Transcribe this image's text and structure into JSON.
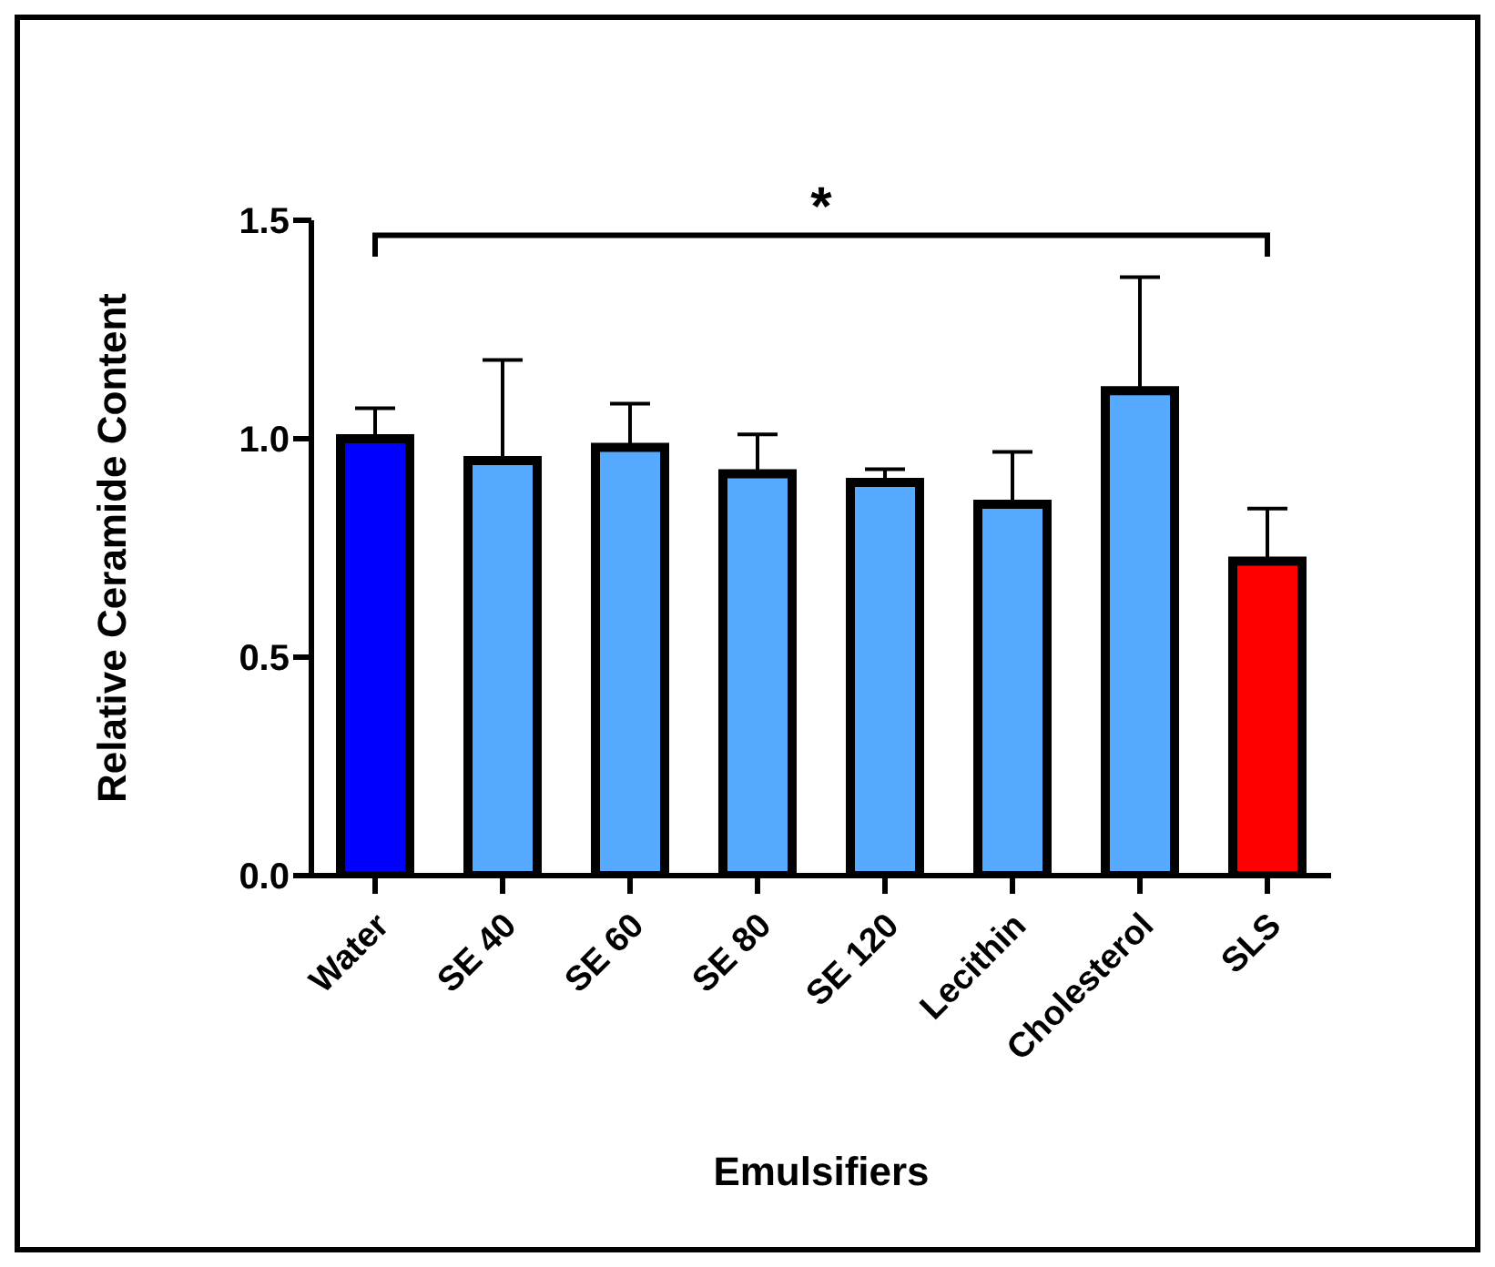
{
  "chart_data": {
    "type": "bar",
    "xlabel": "Emulsifiers",
    "ylabel": "Relative Ceramide Content",
    "categories": [
      "Water",
      "SE 40",
      "SE 60",
      "SE 80",
      "SE 120",
      "Lecithin",
      "Cholesterol",
      "SLS"
    ],
    "values": [
      1.0,
      0.95,
      0.98,
      0.92,
      0.9,
      0.85,
      1.11,
      0.72
    ],
    "errors": [
      [
        1.0,
        1.07
      ],
      [
        0.95,
        1.18
      ],
      [
        0.98,
        1.08
      ],
      [
        0.92,
        1.01
      ],
      [
        0.9,
        0.93
      ],
      [
        0.85,
        0.97
      ],
      [
        1.11,
        1.37
      ],
      [
        0.72,
        0.84
      ]
    ],
    "colors": [
      "#0000ff",
      "#55aaff",
      "#55aaff",
      "#55aaff",
      "#55aaff",
      "#55aaff",
      "#55aaff",
      "#ff0000"
    ],
    "ylim": [
      0,
      1.5
    ],
    "yticks": [
      {
        "value": 0,
        "label": "0.0"
      },
      0.5,
      {
        "value": 1,
        "label": "1.0"
      },
      1.5
    ],
    "grid": false,
    "annotations": [
      "*"
    ]
  }
}
